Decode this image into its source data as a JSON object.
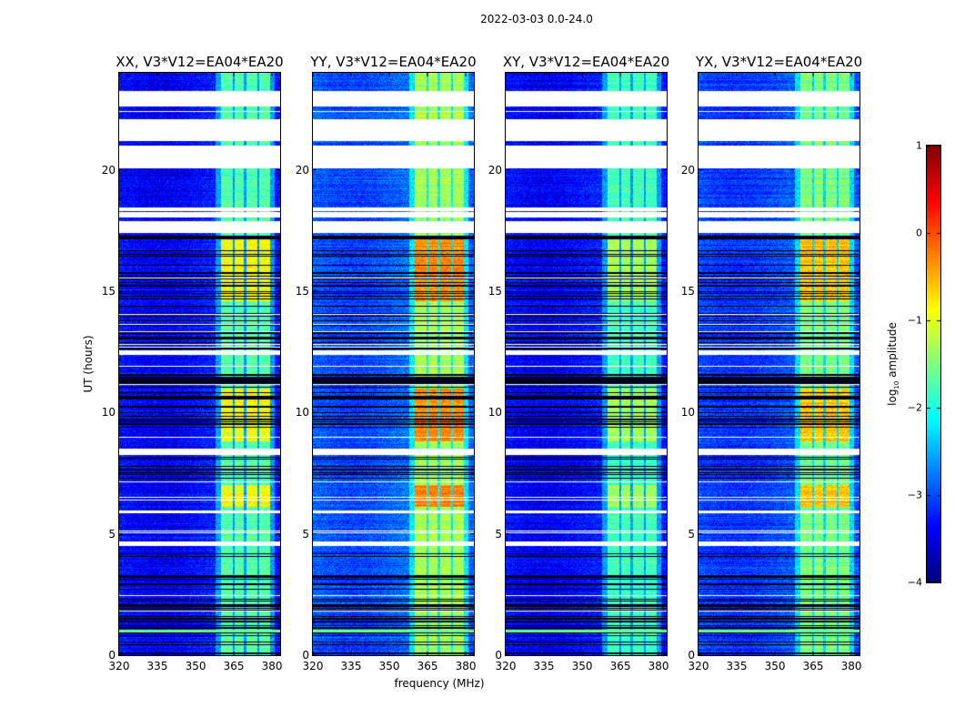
{
  "chart_data": {
    "type": "heatmap",
    "title": "2022-03-03 0.0-24.0",
    "xlabel": "frequency (MHz)",
    "ylabel": "UT (hours)",
    "xlim": [
      320,
      383.2
    ],
    "ylim": [
      0,
      24
    ],
    "xticks": [
      "320",
      "335",
      "350",
      "365",
      "380"
    ],
    "xtick_values": [
      320,
      335,
      350,
      365,
      380
    ],
    "yticks": [
      "0",
      "5",
      "10",
      "15",
      "20"
    ],
    "ytick_values": [
      0,
      5,
      10,
      15,
      20
    ],
    "colormap": "jet",
    "colorbar": {
      "label_main": "log",
      "label_sub": "10",
      "label_rest": " amplitude",
      "vmin": -4,
      "vmax": 1,
      "ticks": [
        "1",
        "0",
        "−1",
        "−2",
        "−3",
        "−4"
      ],
      "tick_values": [
        1,
        0,
        -1,
        -2,
        -3,
        -4
      ]
    },
    "panels": [
      {
        "title": "XX, V3*V12=EA04*EA20",
        "background_level": -3.3,
        "band_level": -1.7,
        "peak_level": -0.9
      },
      {
        "title": "YY, V3*V12=EA04*EA20",
        "background_level": -2.9,
        "band_level": -1.3,
        "peak_level": -0.3
      },
      {
        "title": "XY, V3*V12=EA04*EA20",
        "background_level": -3.3,
        "band_level": -1.8,
        "peak_level": -1.3
      },
      {
        "title": "YX, V3*V12=EA04*EA20",
        "background_level": -3.0,
        "band_level": -1.5,
        "peak_level": -0.6
      }
    ],
    "bright_bands_mhz": [
      [
        360,
        364.6
      ],
      [
        365.2,
        368.8
      ],
      [
        370,
        374.3
      ],
      [
        375,
        379.3
      ]
    ],
    "peak_ut_ranges": [
      [
        14.6,
        17.2
      ],
      [
        8.8,
        11.0
      ],
      [
        6.1,
        7.0
      ]
    ],
    "flagged_ut_ranges": [
      [
        22.6,
        23.25
      ],
      [
        21.2,
        22.1
      ],
      [
        20.05,
        21.0
      ],
      [
        18.05,
        18.25
      ],
      [
        18.3,
        18.45
      ],
      [
        17.4,
        17.9
      ],
      [
        12.4,
        12.55
      ],
      [
        8.25,
        8.5
      ],
      [
        5.85,
        5.95
      ],
      [
        4.5,
        4.7
      ]
    ],
    "dark_ut_ranges": [
      [
        0,
        4.5
      ],
      [
        12.6,
        17.4
      ],
      [
        7.2,
        8.2
      ],
      [
        9.3,
        11.6
      ]
    ]
  }
}
